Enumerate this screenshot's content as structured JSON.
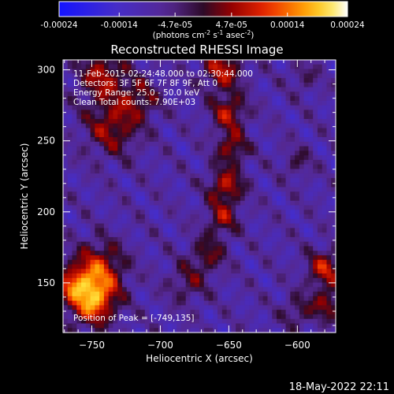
{
  "chart_data": {
    "type": "heatmap",
    "title": "Reconstructed RHESSI Image",
    "xlabel": "Heliocentric X (arcsec)",
    "ylabel": "Heliocentric Y (arcsec)",
    "xlim": [
      -771,
      -572
    ],
    "ylim": [
      115,
      307
    ],
    "x_ticks": [
      -750,
      -700,
      -650,
      -600
    ],
    "y_ticks": [
      150,
      200,
      250,
      300
    ],
    "colorbar": {
      "ticks": [
        -0.00024,
        -0.00014,
        -4.7e-05,
        4.7e-05,
        0.00014,
        0.00024
      ],
      "tick_labels": [
        "-0.00024",
        "-0.00014",
        "-4.7e-05",
        "4.7e-05",
        "0.00014",
        "0.00024"
      ],
      "unit_text": "(photons cm",
      "unit_sup1": "-2",
      "unit_mid": " s",
      "unit_sup2": "-1",
      "unit_tail": " asec",
      "unit_sup3": "-2",
      "unit_close": ")",
      "range": [
        -0.00024,
        0.00024
      ]
    },
    "annotations": [
      "11-Feb-2015 02:24:48.000 to 02:30:44.000",
      "Detectors: 3F 5F 6F 7F 8F 9F, Att 0",
      "Energy Range: 25.0 - 50.0 keV",
      "Clean     Total counts: 7.90E+03"
    ],
    "peak_label": "Position of Peak = [-749,135]",
    "peak_position": [
      -749,
      135
    ],
    "sources": [
      {
        "x": -735,
        "y": 260,
        "sigma": 14,
        "amp": 0.00013
      },
      {
        "x": -715,
        "y": 280,
        "sigma": 10,
        "amp": 0.0001
      },
      {
        "x": -742,
        "y": 296,
        "sigma": 12,
        "amp": 0.00014
      },
      {
        "x": -750,
        "y": 138,
        "sigma": 12,
        "amp": 0.00024
      },
      {
        "x": -745,
        "y": 160,
        "sigma": 13,
        "amp": 0.00016
      },
      {
        "x": -765,
        "y": 150,
        "sigma": 8,
        "amp": 0.00012
      },
      {
        "x": -655,
        "y": 300,
        "sigma": 10,
        "amp": 0.00015
      },
      {
        "x": -650,
        "y": 270,
        "sigma": 9,
        "amp": 0.00014
      },
      {
        "x": -648,
        "y": 245,
        "sigma": 8,
        "amp": 0.00013
      },
      {
        "x": -652,
        "y": 218,
        "sigma": 9,
        "amp": 0.00015
      },
      {
        "x": -655,
        "y": 195,
        "sigma": 8,
        "amp": 0.00012
      },
      {
        "x": -665,
        "y": 170,
        "sigma": 9,
        "amp": 0.0001
      },
      {
        "x": -680,
        "y": 150,
        "sigma": 10,
        "amp": 8e-05
      },
      {
        "x": -580,
        "y": 160,
        "sigma": 9,
        "amp": 0.00015
      },
      {
        "x": -578,
        "y": 135,
        "sigma": 8,
        "amp": 0.00012
      },
      {
        "x": -600,
        "y": 130,
        "sigma": 8,
        "amp": 8e-05
      },
      {
        "x": -600,
        "y": 235,
        "sigma": 7,
        "amp": 7e-05
      },
      {
        "x": -595,
        "y": 295,
        "sigma": 7,
        "amp": 6e-05
      }
    ]
  },
  "footer": {
    "timestamp": "18-May-2022 22:11"
  }
}
